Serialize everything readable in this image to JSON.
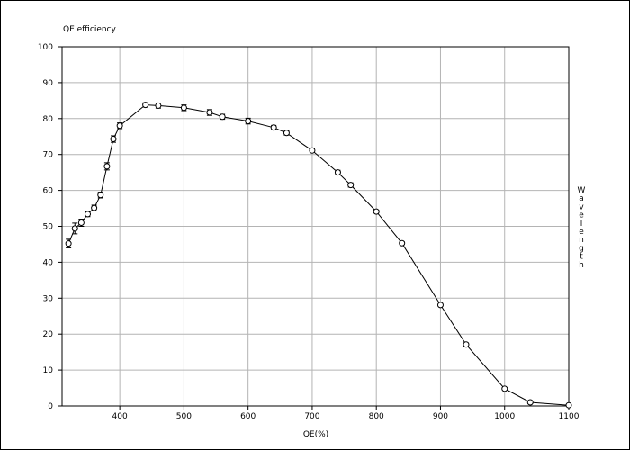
{
  "chart_data": {
    "type": "line",
    "title": "QE efficiency",
    "xlabel": "QE(%)",
    "ylabel": "Wavelength",
    "xlim": [
      310,
      1100
    ],
    "ylim": [
      0,
      100
    ],
    "xticks": [
      400,
      500,
      600,
      700,
      800,
      900,
      1000,
      1100
    ],
    "yticks": [
      0,
      10,
      20,
      30,
      40,
      50,
      60,
      70,
      80,
      90,
      100
    ],
    "grid": true,
    "legend": "none",
    "series": [
      {
        "x": [
          320,
          330,
          340,
          350,
          360,
          370,
          380,
          390,
          400,
          440,
          460,
          500,
          540,
          560,
          600,
          640,
          660,
          700,
          740,
          760,
          800,
          840,
          900,
          940,
          1000,
          1040,
          1100
        ],
        "y": [
          45.2,
          49.4,
          51.0,
          53.4,
          55.1,
          58.7,
          66.7,
          74.3,
          78.0,
          83.8,
          83.6,
          83.0,
          81.7,
          80.5,
          79.3,
          77.5,
          76.0,
          71.1,
          65.0,
          61.5,
          54.1,
          45.3,
          28.1,
          17.1,
          4.8,
          1.0,
          0.2
        ],
        "err": [
          1.2,
          1.5,
          1.0,
          0.7,
          0.8,
          0.8,
          1.0,
          0.9,
          0.8,
          0.6,
          0.7,
          0.8,
          0.8,
          0.7,
          0.8,
          0.6,
          0.6,
          0.5,
          0.6,
          0.6,
          0.4,
          0.4,
          0.4,
          0.4,
          0.3,
          0.3,
          0.3
        ]
      }
    ]
  }
}
